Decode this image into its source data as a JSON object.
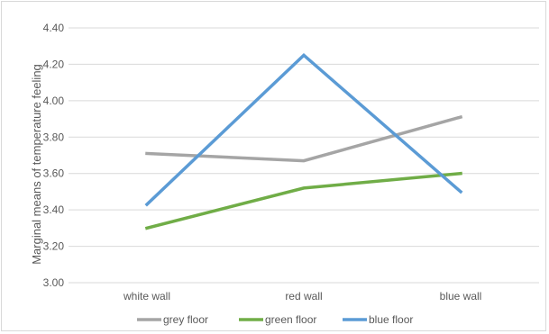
{
  "chart_data": {
    "type": "line",
    "title": "",
    "xlabel": "",
    "ylabel": "Marginal means of temperature feeling",
    "categories": [
      "white wall",
      "red wall",
      "blue wall"
    ],
    "yticks": [
      "3.00",
      "3.20",
      "3.40",
      "3.60",
      "3.80",
      "4.00",
      "4.20",
      "4.40"
    ],
    "ylim": [
      3.0,
      4.4
    ],
    "grid": "horizontal",
    "legend_position": "bottom",
    "series": [
      {
        "name": "grey floor",
        "color": "#a5a5a5",
        "values": [
          3.71,
          3.67,
          3.91
        ]
      },
      {
        "name": "green floor",
        "color": "#70ad47",
        "values": [
          3.3,
          3.52,
          3.6
        ]
      },
      {
        "name": "blue floor",
        "color": "#5b9bd5",
        "values": [
          3.43,
          4.25,
          3.5
        ]
      }
    ]
  }
}
